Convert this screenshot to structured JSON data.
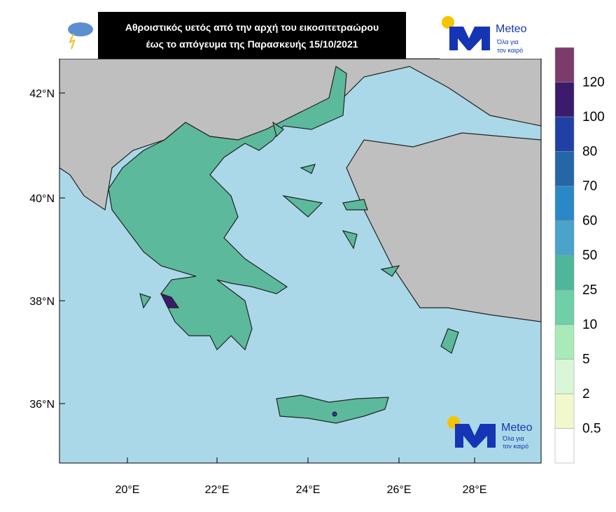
{
  "header": {
    "title_lines": [
      "Αθροιστικός υετός από την αρχή του εικοσιτετραώρου",
      "έως το απόγευμα της Παρασκευής 15/10/2021"
    ]
  },
  "logo": {
    "name": "Meteo",
    "slogan_lines": [
      "Όλα για",
      "τον καιρό"
    ]
  },
  "watermark": {
    "name": "Meteo",
    "slogan_lines": [
      "Όλα για",
      "τον καιρό"
    ]
  },
  "map": {
    "lat_labels": [
      "42°N",
      "40°N",
      "38°N",
      "36°N"
    ],
    "lon_labels": [
      "20°E",
      "22°E",
      "24°E",
      "26°E",
      "28°E"
    ]
  },
  "legend": {
    "colors": [
      "#ffffff",
      "#f1f8cc",
      "#d9f6d9",
      "#a9eab9",
      "#6fcfa6",
      "#4fb69c",
      "#4aa3c9",
      "#2b88c6",
      "#2466a6",
      "#2140a6",
      "#3b1b6c",
      "#7b3c6c"
    ],
    "labels": [
      "0.5",
      "2",
      "5",
      "10",
      "25",
      "50",
      "60",
      "70",
      "80",
      "100",
      "120"
    ]
  }
}
